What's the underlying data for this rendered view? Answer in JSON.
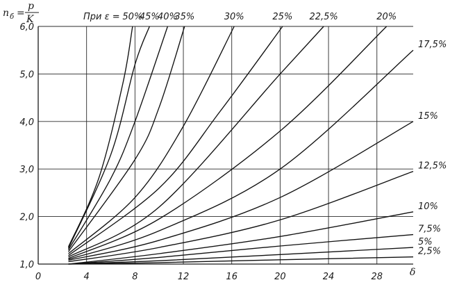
{
  "chart_data": {
    "type": "line",
    "title": "",
    "ylabel": "n_б = p/K",
    "ylabel_lhs": "n",
    "ylabel_sub": "б",
    "ylabel_eq": "=",
    "ylabel_num": "p",
    "ylabel_den": "K",
    "xlabel": "δ",
    "curve_prefix": "При ε =",
    "xlim": [
      0,
      31
    ],
    "ylim": [
      1.0,
      6.0
    ],
    "x_ticks": [
      "0",
      "4",
      "8",
      "12",
      "16",
      "20",
      "24",
      "28"
    ],
    "y_ticks": [
      "1,0",
      "2,0",
      "3,0",
      "4,0",
      "5,0",
      "6,0"
    ],
    "grid": true,
    "series": [
      {
        "name": "2,5%",
        "label_pos": "right",
        "points": [
          [
            2.5,
            1.0
          ],
          [
            10,
            1.03
          ],
          [
            20,
            1.09
          ],
          [
            31,
            1.15
          ]
        ]
      },
      {
        "name": "5%",
        "label_pos": "right",
        "points": [
          [
            2.5,
            1.0
          ],
          [
            10,
            1.07
          ],
          [
            20,
            1.2
          ],
          [
            31,
            1.35
          ]
        ]
      },
      {
        "name": "7,5%",
        "label_pos": "right",
        "points": [
          [
            2.5,
            1.0
          ],
          [
            10,
            1.14
          ],
          [
            20,
            1.38
          ],
          [
            31,
            1.62
          ]
        ]
      },
      {
        "name": "10%",
        "label_pos": "right",
        "points": [
          [
            2.5,
            1.0
          ],
          [
            10,
            1.22
          ],
          [
            20,
            1.58
          ],
          [
            31,
            2.1
          ]
        ]
      },
      {
        "name": "12,5%",
        "label_pos": "right",
        "points": [
          [
            2.5,
            1.05
          ],
          [
            10,
            1.35
          ],
          [
            20,
            1.93
          ],
          [
            31,
            2.95
          ]
        ]
      },
      {
        "name": "15%",
        "label_pos": "right",
        "points": [
          [
            2.5,
            1.08
          ],
          [
            10,
            1.5
          ],
          [
            20,
            2.4
          ],
          [
            31,
            4.0
          ]
        ]
      },
      {
        "name": "17,5%",
        "label_pos": "right",
        "points": [
          [
            2.5,
            1.1
          ],
          [
            10,
            1.7
          ],
          [
            20,
            3.0
          ],
          [
            31,
            5.5
          ]
        ]
      },
      {
        "name": "20%",
        "label_pos": "top",
        "points": [
          [
            2.5,
            1.12
          ],
          [
            10,
            1.95
          ],
          [
            20,
            3.8
          ],
          [
            28.8,
            6.0
          ]
        ]
      },
      {
        "name": "22,5%",
        "label_pos": "top",
        "points": [
          [
            2.5,
            1.15
          ],
          [
            10,
            2.2
          ],
          [
            20,
            5.0
          ],
          [
            23.6,
            6.0
          ]
        ]
      },
      {
        "name": "25%",
        "label_pos": "top",
        "points": [
          [
            2.5,
            1.18
          ],
          [
            10,
            2.6
          ],
          [
            15,
            4.2
          ],
          [
            20.2,
            6.0
          ]
        ]
      },
      {
        "name": "30%",
        "label_pos": "top",
        "points": [
          [
            2.5,
            1.22
          ],
          [
            8,
            2.4
          ],
          [
            12,
            3.9
          ],
          [
            16.2,
            6.0
          ]
        ]
      },
      {
        "name": "35%",
        "label_pos": "top",
        "points": [
          [
            2.5,
            1.26
          ],
          [
            8,
            3.2
          ],
          [
            10,
            4.3
          ],
          [
            12.1,
            6.0
          ]
        ]
      },
      {
        "name": "40%",
        "label_pos": "top",
        "points": [
          [
            2.5,
            1.3
          ],
          [
            6,
            2.8
          ],
          [
            8,
            4.0
          ],
          [
            10.7,
            6.0
          ]
        ]
      },
      {
        "name": "45%",
        "label_pos": "top",
        "points": [
          [
            2.5,
            1.33
          ],
          [
            6,
            3.3
          ],
          [
            8,
            5.2
          ],
          [
            9.2,
            6.0
          ]
        ]
      },
      {
        "name": "50%",
        "label_pos": "top",
        "points": [
          [
            2.5,
            1.36
          ],
          [
            5,
            2.8
          ],
          [
            7,
            4.8
          ],
          [
            7.8,
            6.0
          ]
        ]
      }
    ]
  }
}
